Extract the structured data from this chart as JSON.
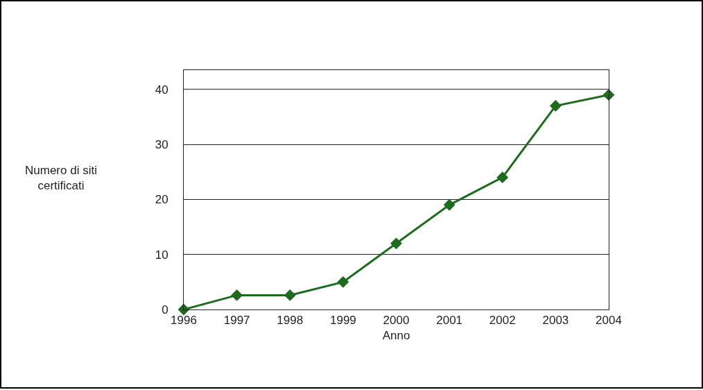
{
  "chart_data": {
    "type": "line",
    "xlabel": "Anno",
    "ylabel": "Numero di siti certificati",
    "x": [
      1996,
      1997,
      1998,
      1999,
      2000,
      2001,
      2002,
      2003,
      2004
    ],
    "series": [
      {
        "color": "#1e6b1e",
        "values": [
          0,
          2.6,
          2.6,
          5,
          12,
          19,
          24,
          37,
          39
        ]
      }
    ],
    "xlim": [
      1996,
      2004
    ],
    "xticks": [
      1996,
      1997,
      1998,
      1999,
      2000,
      2001,
      2002,
      2003,
      2004
    ],
    "ylim": [
      0,
      43.5
    ],
    "yticks": [
      0,
      10,
      20,
      30,
      40
    ],
    "grid": "y",
    "marker": "diamond",
    "line_style": "solid"
  }
}
